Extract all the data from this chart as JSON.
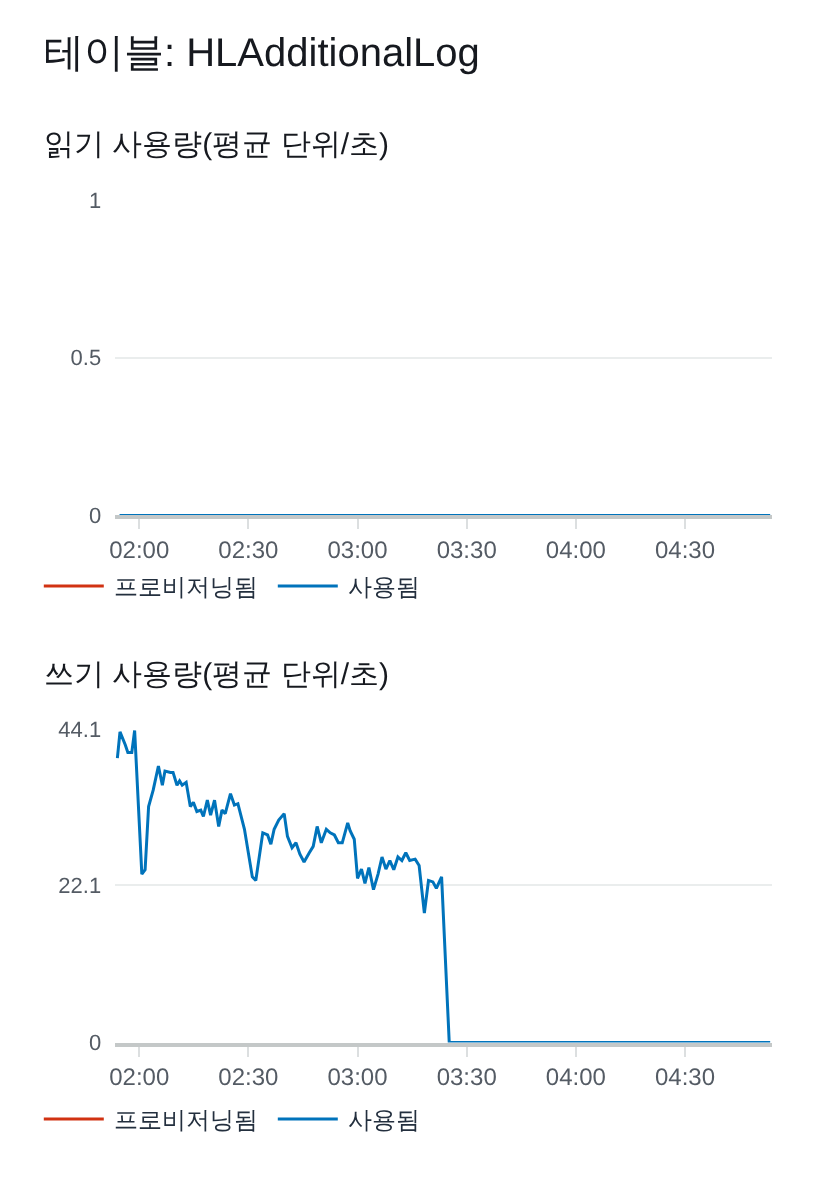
{
  "chart_data": [
    {
      "type": "other",
      "title": "테이블: HLAdditionalLog"
    },
    {
      "type": "line",
      "title": "읽기 사용량(평균 단위/초)",
      "xlim": [
        1.89,
        4.9
      ],
      "xticks": [
        {
          "value": 2,
          "label": "02:00"
        },
        {
          "value": 2.5,
          "label": "02:30"
        },
        {
          "value": 3,
          "label": "03:00"
        },
        {
          "value": 3.5,
          "label": "03:30"
        },
        {
          "value": 4,
          "label": "04:00"
        },
        {
          "value": 4.5,
          "label": "04:30"
        }
      ],
      "ylim": [
        0,
        1
      ],
      "yticks": [
        0,
        0.5,
        1
      ],
      "grid": "y",
      "legend": "bottom left",
      "series": [
        {
          "name": "프로비저닝됨",
          "color": "#d13212"
        },
        {
          "name": "사용됨",
          "color": "#0073bb",
          "x": [
            1.91,
            4.89
          ],
          "values": [
            0,
            0
          ]
        }
      ]
    },
    {
      "type": "line",
      "title": "쓰기 사용량(평균 단위/초)",
      "xlim": [
        1.89,
        4.9
      ],
      "xticks": [
        {
          "value": 2,
          "label": "02:00"
        },
        {
          "value": 2.5,
          "label": "02:30"
        },
        {
          "value": 3,
          "label": "03:00"
        },
        {
          "value": 3.5,
          "label": "03:30"
        },
        {
          "value": 4,
          "label": "04:00"
        },
        {
          "value": 4.5,
          "label": "04:30"
        }
      ],
      "ylim": [
        0,
        44.1
      ],
      "yticks": [
        0,
        22.1,
        44.1
      ],
      "grid": "y",
      "legend": "bottom left",
      "series": [
        {
          "name": "프로비저닝됨",
          "color": "#d13212"
        },
        {
          "name": "사용됨",
          "color": "#0073bb",
          "x": [
            1.9,
            1.912,
            1.936,
            1.948,
            1.966,
            1.979,
            2.012,
            2.027,
            2.043,
            2.064,
            2.088,
            2.106,
            2.118,
            2.143,
            2.155,
            2.173,
            2.185,
            2.197,
            2.215,
            2.234,
            2.248,
            2.264,
            2.282,
            2.294,
            2.312,
            2.327,
            2.345,
            2.364,
            2.379,
            2.394,
            2.418,
            2.436,
            2.452,
            2.482,
            2.518,
            2.534,
            2.566,
            2.588,
            2.603,
            2.618,
            2.639,
            2.664,
            2.679,
            2.7,
            2.718,
            2.736,
            2.755,
            2.779,
            2.797,
            2.815,
            2.834,
            2.857,
            2.875,
            2.894,
            2.912,
            2.93,
            2.955,
            2.966,
            2.985,
            3.0,
            3.018,
            3.034,
            3.052,
            3.073,
            3.094,
            3.112,
            3.13,
            3.148,
            3.166,
            3.185,
            3.203,
            3.221,
            3.239,
            3.264,
            3.282,
            3.306,
            3.325,
            3.345,
            3.361,
            3.385,
            3.42,
            4.89
          ],
          "values": [
            40.0,
            43.7,
            41.9,
            40.8,
            40.8,
            43.9,
            23.7,
            24.3,
            33.2,
            35.5,
            38.9,
            36.2,
            38.2,
            38.0,
            38.0,
            36.2,
            36.8,
            36.2,
            36.6,
            33.2,
            33.8,
            32.5,
            32.7,
            31.8,
            34.1,
            32.0,
            34.1,
            30.4,
            32.7,
            32.2,
            35.0,
            33.4,
            33.6,
            30.0,
            23.3,
            22.8,
            29.5,
            29.2,
            27.9,
            30.0,
            31.3,
            32.2,
            29.0,
            27.4,
            28.1,
            26.5,
            25.4,
            26.7,
            27.6,
            30.4,
            28.1,
            30.0,
            29.5,
            29.2,
            28.1,
            28.1,
            30.9,
            29.8,
            28.6,
            23.1,
            24.4,
            22.4,
            24.6,
            21.5,
            23.7,
            26.1,
            24.4,
            25.6,
            24.3,
            26.1,
            25.6,
            26.7,
            25.6,
            25.8,
            24.9,
            18.2,
            22.8,
            22.6,
            21.7,
            23.3,
            0,
            0
          ]
        }
      ]
    }
  ]
}
